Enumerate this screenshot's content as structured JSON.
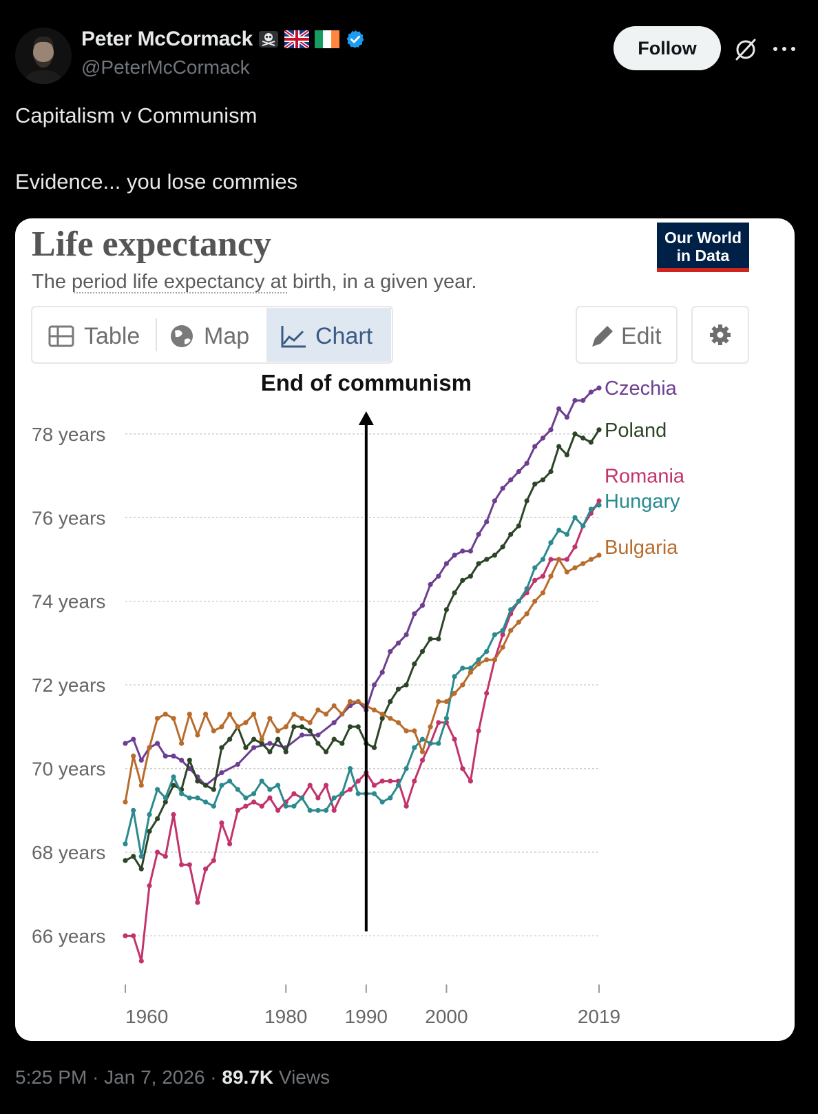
{
  "author": {
    "name": "Peter McCormack",
    "handle": "@PeterMcCormack",
    "verified": true
  },
  "follow_label": "Follow",
  "icons": [
    "skull-crossbones-icon",
    "uk-flag-icon",
    "ireland-flag-icon",
    "verified-badge-icon",
    "grok-icon",
    "more-icon"
  ],
  "tweet": {
    "line1": "Capitalism v Communism",
    "line2": "Evidence... you lose commies"
  },
  "owid": {
    "logo_line1": "Our World",
    "logo_line2": "in Data",
    "tabs": {
      "table": "Table",
      "map": "Map",
      "chart": "Chart"
    },
    "edit": "Edit"
  },
  "chart_data": {
    "type": "line",
    "title": "Life expectancy",
    "subtitle": "The period life expectancy at birth, in a given year.",
    "annotation": "End of communism",
    "annotation_year": 1990,
    "y_ticks": [
      66,
      68,
      70,
      72,
      74,
      76,
      78
    ],
    "y_tick_labels": [
      "66 years",
      "68 years",
      "70 years",
      "72 years",
      "74 years",
      "76 years",
      "78 years"
    ],
    "x_ticks": [
      1960,
      1980,
      1990,
      2000,
      2019
    ],
    "x_tick_labels": [
      "1960",
      "1980",
      "1990",
      "2000",
      "2019"
    ],
    "xlim": [
      1960,
      2019
    ],
    "ylim": [
      65.2,
      79.2
    ],
    "series": [
      {
        "name": "Czechia",
        "color": "#6d3e91",
        "points": [
          [
            1960,
            70.6
          ],
          [
            1961,
            70.7
          ],
          [
            1962,
            70.2
          ],
          [
            1963,
            70.5
          ],
          [
            1964,
            70.6
          ],
          [
            1965,
            70.3
          ],
          [
            1966,
            70.3
          ],
          [
            1967,
            70.2
          ],
          [
            1968,
            70.0
          ],
          [
            1969,
            69.8
          ],
          [
            1970,
            69.6
          ],
          [
            1972,
            69.9
          ],
          [
            1974,
            70.1
          ],
          [
            1976,
            70.5
          ],
          [
            1978,
            70.6
          ],
          [
            1980,
            70.5
          ],
          [
            1982,
            70.8
          ],
          [
            1984,
            70.8
          ],
          [
            1986,
            71.1
          ],
          [
            1988,
            71.5
          ],
          [
            1989,
            71.6
          ],
          [
            1990,
            71.4
          ],
          [
            1991,
            72.0
          ],
          [
            1992,
            72.3
          ],
          [
            1993,
            72.8
          ],
          [
            1994,
            73.0
          ],
          [
            1995,
            73.2
          ],
          [
            1996,
            73.7
          ],
          [
            1997,
            73.9
          ],
          [
            1998,
            74.4
          ],
          [
            1999,
            74.6
          ],
          [
            2000,
            74.9
          ],
          [
            2001,
            75.1
          ],
          [
            2002,
            75.2
          ],
          [
            2003,
            75.2
          ],
          [
            2004,
            75.6
          ],
          [
            2005,
            75.9
          ],
          [
            2006,
            76.4
          ],
          [
            2007,
            76.7
          ],
          [
            2008,
            76.9
          ],
          [
            2009,
            77.1
          ],
          [
            2010,
            77.3
          ],
          [
            2011,
            77.7
          ],
          [
            2012,
            77.9
          ],
          [
            2013,
            78.1
          ],
          [
            2014,
            78.6
          ],
          [
            2015,
            78.4
          ],
          [
            2016,
            78.8
          ],
          [
            2017,
            78.8
          ],
          [
            2018,
            79.0
          ],
          [
            2019,
            79.1
          ]
        ]
      },
      {
        "name": "Poland",
        "color": "#2c4527",
        "points": [
          [
            1960,
            67.8
          ],
          [
            1961,
            67.9
          ],
          [
            1962,
            67.6
          ],
          [
            1963,
            68.5
          ],
          [
            1964,
            68.8
          ],
          [
            1965,
            69.2
          ],
          [
            1966,
            69.6
          ],
          [
            1967,
            69.5
          ],
          [
            1968,
            70.2
          ],
          [
            1969,
            69.7
          ],
          [
            1970,
            69.6
          ],
          [
            1971,
            69.5
          ],
          [
            1972,
            70.5
          ],
          [
            1973,
            70.7
          ],
          [
            1974,
            71.0
          ],
          [
            1975,
            70.5
          ],
          [
            1976,
            70.7
          ],
          [
            1977,
            70.6
          ],
          [
            1978,
            70.4
          ],
          [
            1979,
            70.7
          ],
          [
            1980,
            70.4
          ],
          [
            1981,
            71.0
          ],
          [
            1982,
            71.0
          ],
          [
            1983,
            70.9
          ],
          [
            1984,
            70.6
          ],
          [
            1985,
            70.4
          ],
          [
            1986,
            70.7
          ],
          [
            1987,
            70.6
          ],
          [
            1988,
            71.0
          ],
          [
            1989,
            71.0
          ],
          [
            1990,
            70.6
          ],
          [
            1991,
            70.5
          ],
          [
            1992,
            71.2
          ],
          [
            1993,
            71.6
          ],
          [
            1994,
            71.9
          ],
          [
            1995,
            72.0
          ],
          [
            1996,
            72.5
          ],
          [
            1997,
            72.8
          ],
          [
            1998,
            73.1
          ],
          [
            1999,
            73.1
          ],
          [
            2000,
            73.8
          ],
          [
            2001,
            74.2
          ],
          [
            2002,
            74.5
          ],
          [
            2003,
            74.6
          ],
          [
            2004,
            74.9
          ],
          [
            2005,
            75.0
          ],
          [
            2006,
            75.1
          ],
          [
            2007,
            75.3
          ],
          [
            2008,
            75.6
          ],
          [
            2009,
            75.8
          ],
          [
            2010,
            76.4
          ],
          [
            2011,
            76.8
          ],
          [
            2012,
            76.9
          ],
          [
            2013,
            77.1
          ],
          [
            2014,
            77.7
          ],
          [
            2015,
            77.5
          ],
          [
            2016,
            78.0
          ],
          [
            2017,
            77.9
          ],
          [
            2018,
            77.8
          ],
          [
            2019,
            78.1
          ]
        ]
      },
      {
        "name": "Romania",
        "color": "#c2336b",
        "points": [
          [
            1960,
            66.0
          ],
          [
            1961,
            66.0
          ],
          [
            1962,
            65.4
          ],
          [
            1963,
            67.2
          ],
          [
            1964,
            68.0
          ],
          [
            1965,
            67.9
          ],
          [
            1966,
            68.9
          ],
          [
            1967,
            67.7
          ],
          [
            1968,
            67.7
          ],
          [
            1969,
            66.8
          ],
          [
            1970,
            67.6
          ],
          [
            1971,
            67.8
          ],
          [
            1972,
            68.7
          ],
          [
            1973,
            68.2
          ],
          [
            1974,
            69.0
          ],
          [
            1975,
            69.1
          ],
          [
            1976,
            69.2
          ],
          [
            1977,
            69.1
          ],
          [
            1978,
            69.3
          ],
          [
            1979,
            69.0
          ],
          [
            1980,
            69.2
          ],
          [
            1981,
            69.4
          ],
          [
            1982,
            69.3
          ],
          [
            1983,
            69.6
          ],
          [
            1984,
            69.3
          ],
          [
            1985,
            69.6
          ],
          [
            1986,
            69.0
          ],
          [
            1987,
            69.4
          ],
          [
            1988,
            69.5
          ],
          [
            1989,
            69.7
          ],
          [
            1990,
            69.9
          ],
          [
            1991,
            69.6
          ],
          [
            1992,
            69.7
          ],
          [
            1993,
            69.7
          ],
          [
            1994,
            69.7
          ],
          [
            1995,
            69.1
          ],
          [
            1996,
            69.7
          ],
          [
            1997,
            70.2
          ],
          [
            1998,
            70.6
          ],
          [
            1999,
            71.1
          ],
          [
            2000,
            71.1
          ],
          [
            2001,
            70.7
          ],
          [
            2002,
            70.0
          ],
          [
            2003,
            69.7
          ],
          [
            2004,
            70.9
          ],
          [
            2005,
            71.8
          ],
          [
            2006,
            72.6
          ],
          [
            2007,
            73.2
          ],
          [
            2008,
            73.7
          ],
          [
            2009,
            74.0
          ],
          [
            2010,
            74.2
          ],
          [
            2011,
            74.5
          ],
          [
            2012,
            74.6
          ],
          [
            2013,
            75.0
          ],
          [
            2014,
            75.0
          ],
          [
            2015,
            75.0
          ],
          [
            2016,
            75.3
          ],
          [
            2017,
            75.8
          ],
          [
            2018,
            76.1
          ],
          [
            2019,
            76.4
          ]
        ]
      },
      {
        "name": "Hungary",
        "color": "#2a8a8e",
        "points": [
          [
            1960,
            68.2
          ],
          [
            1961,
            69.0
          ],
          [
            1962,
            67.9
          ],
          [
            1963,
            68.9
          ],
          [
            1964,
            69.5
          ],
          [
            1965,
            69.3
          ],
          [
            1966,
            69.8
          ],
          [
            1967,
            69.4
          ],
          [
            1968,
            69.3
          ],
          [
            1969,
            69.3
          ],
          [
            1970,
            69.2
          ],
          [
            1971,
            69.1
          ],
          [
            1972,
            69.6
          ],
          [
            1973,
            69.7
          ],
          [
            1974,
            69.5
          ],
          [
            1975,
            69.3
          ],
          [
            1976,
            69.4
          ],
          [
            1977,
            69.7
          ],
          [
            1978,
            69.5
          ],
          [
            1979,
            69.6
          ],
          [
            1980,
            69.1
          ],
          [
            1981,
            69.1
          ],
          [
            1982,
            69.3
          ],
          [
            1983,
            69.0
          ],
          [
            1984,
            69.0
          ],
          [
            1985,
            69.0
          ],
          [
            1986,
            69.3
          ],
          [
            1987,
            69.4
          ],
          [
            1988,
            70.0
          ],
          [
            1989,
            69.4
          ],
          [
            1990,
            69.4
          ],
          [
            1991,
            69.4
          ],
          [
            1992,
            69.2
          ],
          [
            1993,
            69.3
          ],
          [
            1994,
            69.6
          ],
          [
            1995,
            70.0
          ],
          [
            1996,
            70.5
          ],
          [
            1997,
            70.7
          ],
          [
            1998,
            70.6
          ],
          [
            1999,
            70.6
          ],
          [
            2000,
            71.2
          ],
          [
            2001,
            72.2
          ],
          [
            2002,
            72.4
          ],
          [
            2003,
            72.4
          ],
          [
            2004,
            72.6
          ],
          [
            2005,
            72.8
          ],
          [
            2006,
            73.2
          ],
          [
            2007,
            73.3
          ],
          [
            2008,
            73.8
          ],
          [
            2009,
            74.0
          ],
          [
            2010,
            74.3
          ],
          [
            2011,
            74.8
          ],
          [
            2012,
            75.0
          ],
          [
            2013,
            75.4
          ],
          [
            2014,
            75.7
          ],
          [
            2015,
            75.6
          ],
          [
            2016,
            76.0
          ],
          [
            2017,
            75.8
          ],
          [
            2018,
            76.2
          ],
          [
            2019,
            76.3
          ]
        ]
      },
      {
        "name": "Bulgaria",
        "color": "#b86c2c",
        "points": [
          [
            1960,
            69.2
          ],
          [
            1961,
            70.3
          ],
          [
            1962,
            69.6
          ],
          [
            1963,
            70.5
          ],
          [
            1964,
            71.2
          ],
          [
            1965,
            71.3
          ],
          [
            1966,
            71.2
          ],
          [
            1967,
            70.6
          ],
          [
            1968,
            71.3
          ],
          [
            1969,
            70.8
          ],
          [
            1970,
            71.3
          ],
          [
            1971,
            70.9
          ],
          [
            1972,
            71.0
          ],
          [
            1973,
            71.3
          ],
          [
            1974,
            71.0
          ],
          [
            1975,
            71.1
          ],
          [
            1976,
            71.3
          ],
          [
            1977,
            70.7
          ],
          [
            1978,
            71.2
          ],
          [
            1979,
            70.9
          ],
          [
            1980,
            71.0
          ],
          [
            1981,
            71.3
          ],
          [
            1982,
            71.2
          ],
          [
            1983,
            71.1
          ],
          [
            1984,
            71.4
          ],
          [
            1985,
            71.3
          ],
          [
            1986,
            71.5
          ],
          [
            1987,
            71.3
          ],
          [
            1988,
            71.6
          ],
          [
            1989,
            71.6
          ],
          [
            1990,
            71.5
          ],
          [
            1991,
            71.4
          ],
          [
            1992,
            71.3
          ],
          [
            1993,
            71.2
          ],
          [
            1994,
            71.1
          ],
          [
            1995,
            70.9
          ],
          [
            1996,
            70.9
          ],
          [
            1997,
            70.4
          ],
          [
            1998,
            71.0
          ],
          [
            1999,
            71.6
          ],
          [
            2000,
            71.6
          ],
          [
            2001,
            71.8
          ],
          [
            2002,
            72.0
          ],
          [
            2003,
            72.3
          ],
          [
            2004,
            72.5
          ],
          [
            2005,
            72.6
          ],
          [
            2006,
            72.6
          ],
          [
            2007,
            72.9
          ],
          [
            2008,
            73.3
          ],
          [
            2009,
            73.5
          ],
          [
            2010,
            73.7
          ],
          [
            2011,
            74.0
          ],
          [
            2012,
            74.2
          ],
          [
            2013,
            74.6
          ],
          [
            2014,
            75.0
          ],
          [
            2015,
            74.7
          ],
          [
            2016,
            74.8
          ],
          [
            2017,
            74.9
          ],
          [
            2018,
            75.0
          ],
          [
            2019,
            75.1
          ]
        ]
      }
    ],
    "end_labels": [
      {
        "name": "Czechia",
        "value": 79.1
      },
      {
        "name": "Poland",
        "value": 78.1
      },
      {
        "name": "Romania",
        "value": 77.0
      },
      {
        "name": "Hungary",
        "value": 76.4
      },
      {
        "name": "Bulgaria",
        "value": 75.3
      }
    ]
  },
  "meta": {
    "time": "5:25 PM",
    "date": "Jan 7, 2026",
    "views_count": "89.7K",
    "views_label": "Views"
  }
}
